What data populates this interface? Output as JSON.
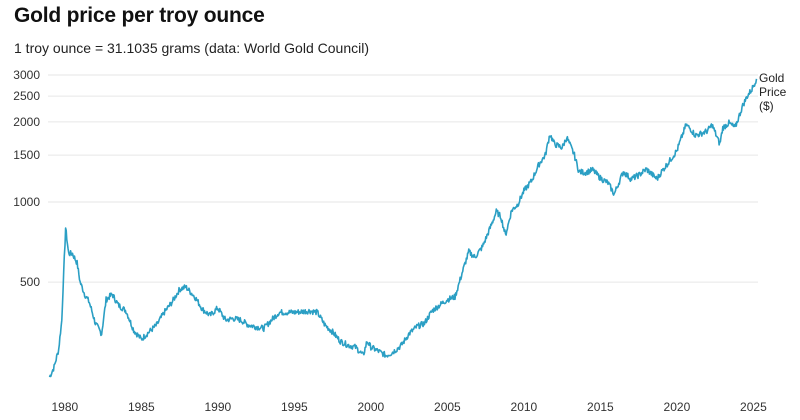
{
  "title": "Gold price per troy ounce",
  "subtitle": "1 troy ounce = 31.1035 grams (data: World Gold Council)",
  "series_label": [
    "Gold",
    "Price",
    "($)"
  ],
  "colors": {
    "line": "#2b9fc4",
    "grid": "#e6e6e6"
  },
  "chart_data": {
    "type": "line",
    "title": "Gold price per troy ounce",
    "subtitle": "1 troy ounce = 31.1035 grams (data: World Gold Council)",
    "xlabel": "",
    "ylabel": "",
    "y_scale": "log",
    "xlim": [
      1978.9,
      2025.3
    ],
    "ylim": [
      190,
      3000
    ],
    "x_ticks": [
      1980,
      1985,
      1990,
      1995,
      2000,
      2005,
      2010,
      2015,
      2020,
      2025
    ],
    "y_ticks": [
      500,
      1000,
      1500,
      2000,
      2500,
      3000
    ],
    "grid": "horizontal",
    "series": [
      {
        "name": "Gold Price ($)",
        "x": [
          1979.0,
          1979.3,
          1979.6,
          1979.8,
          1980.05,
          1980.25,
          1980.5,
          1980.8,
          1981.0,
          1981.3,
          1981.6,
          1982.0,
          1982.4,
          1982.7,
          1983.1,
          1983.5,
          1984.0,
          1984.5,
          1985.0,
          1985.5,
          1986.0,
          1986.5,
          1987.0,
          1987.5,
          1987.9,
          1988.5,
          1989.0,
          1989.5,
          1990.0,
          1990.5,
          1991.0,
          1991.5,
          1992.0,
          1992.5,
          1993.0,
          1993.5,
          1994.0,
          1995.0,
          1996.0,
          1996.5,
          1997.0,
          1997.5,
          1998.0,
          1998.5,
          1999.0,
          1999.5,
          1999.75,
          2000.0,
          2000.5,
          2001.0,
          2001.3,
          2001.7,
          2002.0,
          2002.5,
          2003.0,
          2003.5,
          2004.0,
          2004.5,
          2005.0,
          2005.5,
          2006.0,
          2006.4,
          2006.8,
          2007.3,
          2007.8,
          2008.2,
          2008.5,
          2008.8,
          2009.2,
          2009.6,
          2010.0,
          2010.5,
          2011.0,
          2011.4,
          2011.7,
          2012.0,
          2012.5,
          2012.8,
          2013.3,
          2013.6,
          2014.0,
          2014.5,
          2015.0,
          2015.5,
          2015.9,
          2016.5,
          2017.0,
          2017.5,
          2018.0,
          2018.7,
          2019.0,
          2019.5,
          2020.0,
          2020.6,
          2020.9,
          2021.2,
          2021.5,
          2022.0,
          2022.3,
          2022.8,
          2023.0,
          2023.4,
          2023.8,
          2024.0,
          2024.3,
          2024.6,
          2024.9,
          2025.2
        ],
        "values": [
          220,
          240,
          280,
          360,
          800,
          640,
          640,
          590,
          500,
          450,
          420,
          350,
          320,
          430,
          450,
          410,
          390,
          330,
          305,
          325,
          345,
          385,
          420,
          470,
          480,
          440,
          395,
          375,
          400,
          360,
          365,
          360,
          345,
          340,
          335,
          360,
          385,
          385,
          390,
          385,
          345,
          325,
          300,
          290,
          285,
          265,
          300,
          285,
          275,
          265,
          270,
          280,
          290,
          320,
          340,
          350,
          390,
          410,
          430,
          440,
          550,
          650,
          620,
          680,
          800,
          920,
          880,
          750,
          930,
          980,
          1100,
          1200,
          1390,
          1500,
          1800,
          1650,
          1600,
          1750,
          1500,
          1300,
          1290,
          1320,
          1230,
          1180,
          1070,
          1300,
          1220,
          1260,
          1330,
          1220,
          1300,
          1420,
          1560,
          1950,
          1880,
          1780,
          1800,
          1850,
          1950,
          1650,
          1900,
          1980,
          1900,
          2050,
          2300,
          2500,
          2650,
          2900
        ]
      }
    ]
  }
}
